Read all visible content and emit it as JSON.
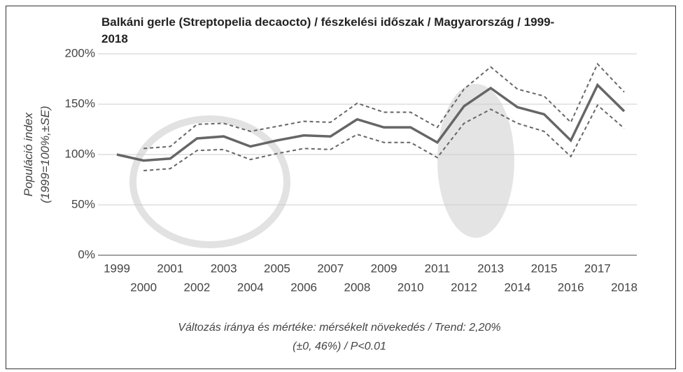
{
  "chart_data": {
    "type": "line",
    "title": "Balkáni gerle (Streptopelia decaocto) / fészkelési időszak / Magyarország / 1999-2018",
    "ylabel": [
      "Populáció index",
      "(1999=100%,±SE)"
    ],
    "note": "Változás iránya és mértéke: mérsékelt növekedés / Trend: 2,20% (±0, 46%) / P<0.01",
    "categories": [
      "1999",
      "2000",
      "2001",
      "2002",
      "2003",
      "2004",
      "2005",
      "2006",
      "2007",
      "2008",
      "2009",
      "2010",
      "2011",
      "2012",
      "2013",
      "2014",
      "2015",
      "2016",
      "2017",
      "2018"
    ],
    "series": [
      {
        "color": "#666666",
        "values": [
          100,
          94,
          96,
          116,
          118,
          108,
          114,
          119,
          118,
          135,
          127,
          127,
          112,
          148,
          166,
          147,
          140,
          114,
          169,
          143
        ]
      },
      {
        "color": "#666666",
        "dashed": true,
        "values": [
          null,
          106,
          108,
          130,
          131,
          123,
          128,
          133,
          132,
          151,
          142,
          142,
          127,
          165,
          187,
          165,
          158,
          132,
          190,
          162
        ]
      },
      {
        "color": "#666666",
        "dashed": true,
        "values": [
          null,
          84,
          86,
          104,
          105,
          95,
          101,
          106,
          105,
          120,
          112,
          112,
          97,
          131,
          145,
          131,
          123,
          98,
          149,
          126
        ]
      }
    ],
    "ylim": [
      0,
      200
    ],
    "yticks": [
      {
        "value": 0,
        "label": "0%"
      },
      {
        "value": 50,
        "label": "50%"
      },
      {
        "value": 100,
        "label": "100%"
      },
      {
        "value": 150,
        "label": "150%"
      },
      {
        "value": 200,
        "label": "200%"
      }
    ],
    "grid": true
  }
}
